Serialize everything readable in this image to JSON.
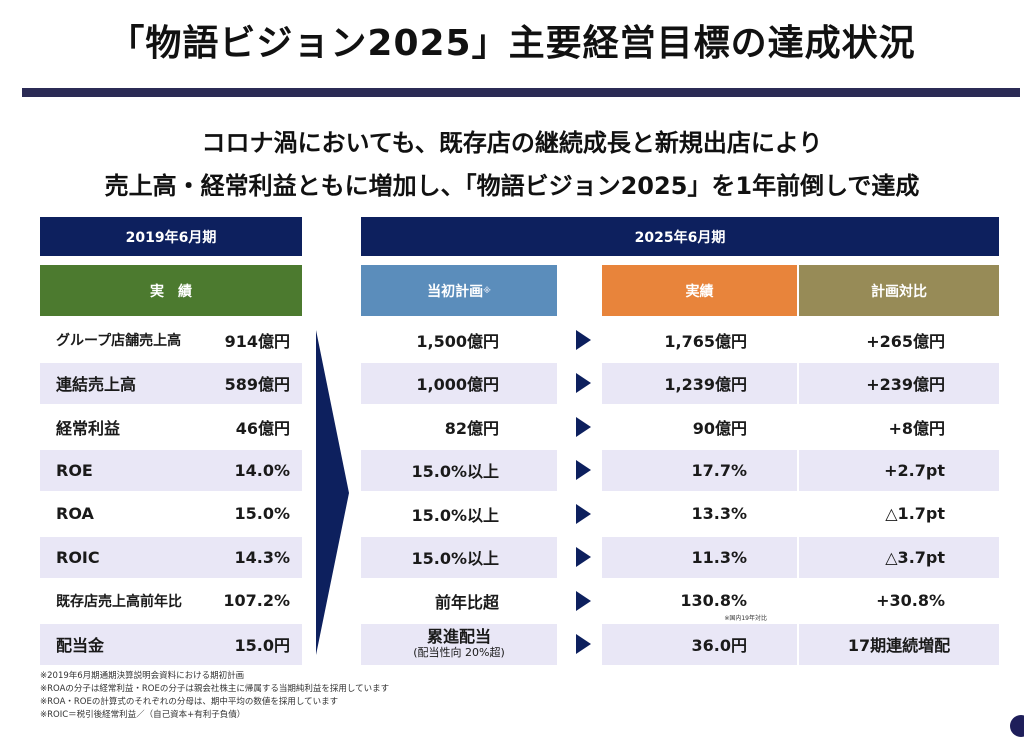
{
  "title": "「物語ビジョン2025」主要経営目標の達成状況",
  "subtitle": {
    "line1": "コロナ渦においても、既存店の継続成長と新規出店により",
    "line2": "売上高・経常利益ともに増加し、「物語ビジョン2025」を1年前倒しで達成"
  },
  "headers": {
    "left_period": "2019年6月期",
    "right_period": "2025年6月期",
    "actual_2019": "実　績",
    "initial_plan": "当初計画",
    "initial_plan_mark": "※",
    "actual_2025": "実績",
    "vs_plan": "計画対比"
  },
  "colors": {
    "navy": "#0d205e",
    "green": "#4c7a2f",
    "blue": "#5b8dbb",
    "orange": "#e8843b",
    "olive": "#978b57",
    "row_shade": "#e9e7f6"
  },
  "rows": [
    {
      "label": "グループ店舗売上高",
      "actual_2019": "914億円",
      "plan": "1,500億円",
      "actual_2025": "1,765億円",
      "vs_plan": "+265億円"
    },
    {
      "label": "連結売上高",
      "actual_2019": "589億円",
      "plan": "1,000億円",
      "actual_2025": "1,239億円",
      "vs_plan": "+239億円"
    },
    {
      "label": "経常利益",
      "actual_2019": "46億円",
      "plan": "82億円",
      "actual_2025": "90億円",
      "vs_plan": "+8億円"
    },
    {
      "label": "ROE",
      "actual_2019": "14.0%",
      "plan": "15.0%以上",
      "actual_2025": "17.7%",
      "vs_plan": "+2.7pt"
    },
    {
      "label": "ROA",
      "actual_2019": "15.0%",
      "plan": "15.0%以上",
      "actual_2025": "13.3%",
      "vs_plan": "△1.7pt"
    },
    {
      "label": "ROIC",
      "actual_2019": "14.3%",
      "plan": "15.0%以上",
      "actual_2025": "11.3%",
      "vs_plan": "△3.7pt"
    },
    {
      "label": "既存店売上高前年比",
      "actual_2019": "107.2%",
      "plan": "前年比超",
      "actual_2025": "130.8%",
      "actual_2025_note": "※国内19年対比",
      "vs_plan": "+30.8%"
    },
    {
      "label": "配当金",
      "actual_2019": "15.0円",
      "plan": "累進配当",
      "plan_sub": "(配当性向 20%超)",
      "actual_2025": "36.0円",
      "vs_plan": "17期連続増配"
    }
  ],
  "footnotes": [
    "※2019年6月期通期決算説明会資料における期初計画",
    "※ROAの分子は経常利益・ROEの分子は親会社株主に帰属する当期純利益を採用しています",
    "※ROA・ROEの計算式のそれぞれの分母は、期中平均の数値を採用しています",
    "※ROIC＝税引後経常利益／（自己資本+有利子負債）"
  ]
}
